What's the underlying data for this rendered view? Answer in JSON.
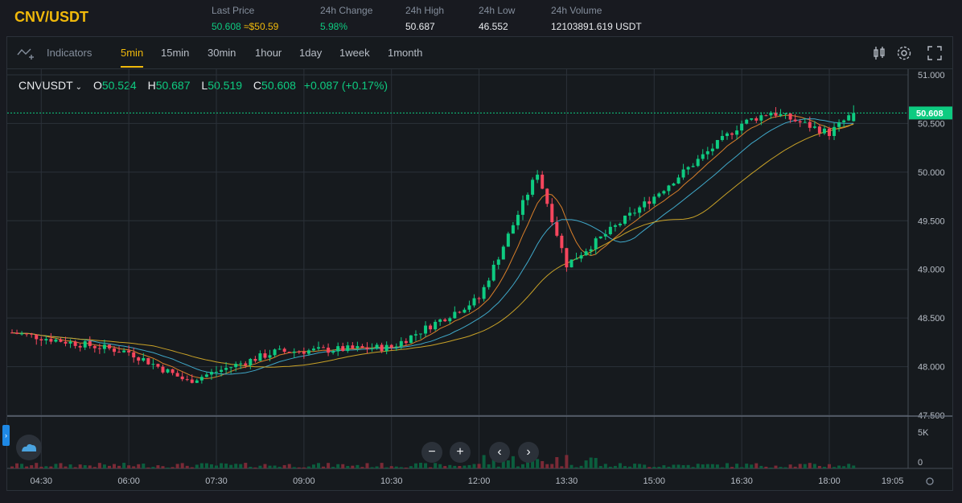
{
  "header": {
    "pair": "CNV/USDT",
    "last_price_label": "Last Price",
    "last_price": "50.608",
    "last_price_usd": "≈$50.59",
    "change_label": "24h Change",
    "change": "5.98%",
    "high_label": "24h High",
    "high": "50.687",
    "low_label": "24h Low",
    "low": "46.552",
    "volume_label": "24h Volume",
    "volume": "12103891.619 USDT"
  },
  "toolbar": {
    "indicators": "Indicators",
    "intervals": [
      "5min",
      "15min",
      "30min",
      "1hour",
      "1day",
      "1week",
      "1month"
    ],
    "active_interval": "5min"
  },
  "legend": {
    "symbol": "CNVUSDT",
    "o_key": "O",
    "o": "50.524",
    "h_key": "H",
    "h": "50.687",
    "l_key": "L",
    "l": "50.519",
    "c_key": "C",
    "c": "50.608",
    "change": "+0.087 (+0.17%)"
  },
  "colors": {
    "up": "#0ecb81",
    "down": "#f6465d",
    "accent": "#f0b90b",
    "ma1": "#d97f2a",
    "ma2": "#3fa8c9",
    "ma3": "#c9a227"
  },
  "chart_data": {
    "type": "candlestick",
    "y_ticks": [
      "51.000",
      "50.500",
      "50.000",
      "49.500",
      "49.000",
      "48.500",
      "48.000",
      "47.500"
    ],
    "ylim": [
      47.5,
      51.0
    ],
    "x_ticks": [
      "04:30",
      "06:00",
      "07:30",
      "09:00",
      "10:30",
      "12:00",
      "13:30",
      "15:00",
      "16:30",
      "18:00",
      "19:05"
    ],
    "last_price_tag": "50.608",
    "volume_ticks": [
      "5K",
      "0"
    ],
    "grid": true,
    "key_points": [
      {
        "time": "04:00",
        "price": 48.35
      },
      {
        "time": "06:00",
        "price": 48.15
      },
      {
        "time": "07:00",
        "price": 47.85
      },
      {
        "time": "08:30",
        "price": 48.15
      },
      {
        "time": "10:30",
        "price": 48.2
      },
      {
        "time": "12:00",
        "price": 48.7
      },
      {
        "time": "13:00",
        "price": 50.0
      },
      {
        "time": "13:30",
        "price": 49.05
      },
      {
        "time": "15:00",
        "price": 49.75
      },
      {
        "time": "16:30",
        "price": 50.5
      },
      {
        "time": "17:00",
        "price": 50.62
      },
      {
        "time": "18:00",
        "price": 50.4
      },
      {
        "time": "18:25",
        "price": 50.61
      }
    ]
  }
}
